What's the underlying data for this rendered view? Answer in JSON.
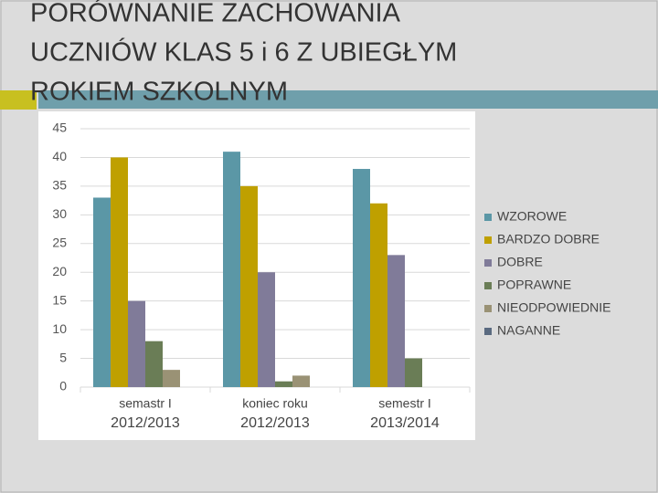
{
  "chart_data": {
    "type": "bar",
    "title": [
      "PORÓWNANIE ZACHOWANIA",
      "UCZNIÓW KLAS 5 i 6 Z UBIEGŁYM",
      "ROKIEM SZKOLNYM"
    ],
    "categories": [
      [
        "semastr I",
        "2012/2013"
      ],
      [
        "koniec roku",
        "2012/2013"
      ],
      [
        "semestr I",
        "2013/2014"
      ]
    ],
    "series": [
      {
        "name": "WZOROWE",
        "color": "#5b97a6",
        "values": [
          33,
          41,
          38
        ]
      },
      {
        "name": "BARDZO DOBRE",
        "color": "#bfa000",
        "values": [
          40,
          35,
          32
        ]
      },
      {
        "name": "DOBRE",
        "color": "#807b99",
        "values": [
          15,
          20,
          23
        ]
      },
      {
        "name": "POPRAWNE",
        "color": "#6a7d56",
        "values": [
          8,
          1,
          5
        ]
      },
      {
        "name": "NIEODPOWIEDNIE",
        "color": "#9a9275",
        "values": [
          3,
          2,
          0
        ]
      },
      {
        "name": "NAGANNE",
        "color": "#5a6a80",
        "values": [
          0,
          0,
          0
        ]
      }
    ],
    "ylim": [
      0,
      45
    ],
    "yticks": [
      0,
      5,
      10,
      15,
      20,
      25,
      30,
      35,
      40,
      45
    ],
    "grid": true,
    "legend": "right"
  }
}
